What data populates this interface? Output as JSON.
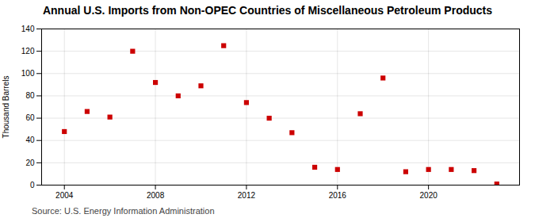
{
  "chart_data": {
    "type": "scatter",
    "title": "Annual U.S. Imports from Non-OPEC Countries of Miscellaneous Petroleum Products",
    "ylabel": "Thousand Barrels",
    "source": "Source: U.S. Energy Information Administration",
    "x": [
      2004,
      2005,
      2006,
      2007,
      2008,
      2009,
      2010,
      2011,
      2012,
      2013,
      2014,
      2015,
      2016,
      2017,
      2018,
      2019,
      2020,
      2021,
      2022,
      2023
    ],
    "values": [
      48,
      66,
      61,
      120,
      92,
      80,
      89,
      125,
      74,
      60,
      47,
      16,
      14,
      64,
      96,
      12,
      14,
      14,
      13,
      1
    ],
    "color": "#cc0000",
    "marker": "square",
    "xlim": [
      2003.0,
      2024.0
    ],
    "ylim": [
      0,
      140
    ],
    "xticks": [
      2004,
      2008,
      2012,
      2016,
      2020
    ],
    "yticks": [
      0,
      20,
      40,
      60,
      80,
      100,
      120,
      140
    ],
    "grid": true
  }
}
